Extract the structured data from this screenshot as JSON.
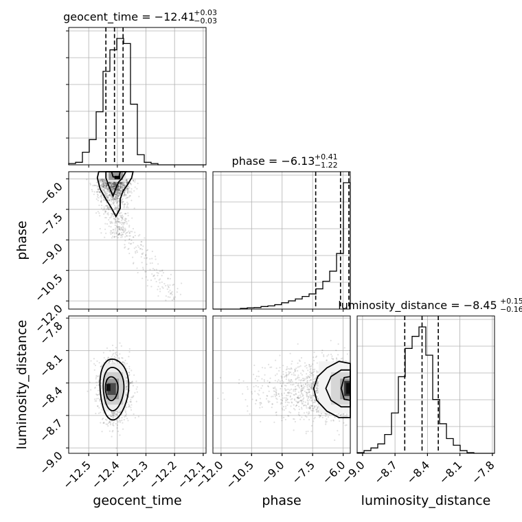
{
  "chart_data": {
    "type": "corner",
    "parameters": [
      {
        "name": "geocent_time",
        "label": "geocent_time",
        "median": -12.41,
        "plus": 0.03,
        "minus": 0.03,
        "title_main": "geocent_time = −12.41",
        "title_plus": "+0.03",
        "title_minus": "−0.03",
        "quantiles": [
          -12.44,
          -12.41,
          -12.38
        ],
        "range": [
          -12.57,
          -12.09
        ],
        "ticks": [
          -12.5,
          -12.4,
          -12.3,
          -12.2,
          -12.1
        ],
        "tick_labels": [
          "−12.5",
          "−12.4",
          "−12.3",
          "−12.2",
          "−12.1"
        ],
        "hist_bins": [
          -12.57,
          -12.546,
          -12.522,
          -12.498,
          -12.474,
          -12.45,
          -12.426,
          -12.402,
          -12.378,
          -12.354,
          -12.33,
          -12.306,
          -12.282,
          -12.258,
          -12.234,
          -12.21,
          -12.186,
          -12.162,
          -12.138,
          -12.114,
          -12.09
        ],
        "hist_counts": [
          0.01,
          0.02,
          0.1,
          0.2,
          0.42,
          0.74,
          0.91,
          1.0,
          0.96,
          0.48,
          0.08,
          0.02,
          0.01,
          0,
          0,
          0,
          0,
          0,
          0,
          0
        ]
      },
      {
        "name": "phase",
        "label": "phase",
        "median": -6.13,
        "plus": 0.41,
        "minus": 1.22,
        "title_main": "phase = −6.13",
        "title_plus": "+0.41",
        "title_minus": "−1.22",
        "quantiles": [
          -7.35,
          -6.13,
          -5.72
        ],
        "range": [
          -12.4,
          -5.65
        ],
        "ticks": [
          -12.0,
          -10.5,
          -9.0,
          -7.5,
          -6.0
        ],
        "tick_labels": [
          "−12.0",
          "−10.5",
          "−9.0",
          "−7.5",
          "−6.0"
        ],
        "hist_bins": [
          -12.4,
          -12.0625,
          -11.725,
          -11.3875,
          -11.05,
          -10.7125,
          -10.375,
          -10.0375,
          -9.7,
          -9.3625,
          -9.025,
          -8.6875,
          -8.35,
          -8.0125,
          -7.675,
          -7.3375,
          -7.0,
          -6.6625,
          -6.325,
          -5.9875,
          -5.65
        ],
        "hist_counts": [
          0,
          0,
          0,
          0,
          0.005,
          0.01,
          0.012,
          0.02,
          0.025,
          0.035,
          0.05,
          0.065,
          0.08,
          0.1,
          0.12,
          0.16,
          0.22,
          0.3,
          0.44,
          1.0
        ]
      },
      {
        "name": "luminosity_distance",
        "label": "luminosity_distance",
        "median": -8.45,
        "plus": 0.15,
        "minus": 0.16,
        "title_main": "luminosity_distance = −8.45",
        "title_plus": "+0.15",
        "title_minus": "−0.16",
        "quantiles": [
          -8.61,
          -8.45,
          -8.3
        ],
        "range": [
          -9.05,
          -7.78
        ],
        "ticks": [
          -9.0,
          -8.7,
          -8.4,
          -8.1,
          -7.8
        ],
        "tick_labels": [
          "−9.0",
          "−8.7",
          "−8.4",
          "−8.1",
          "−7.8"
        ],
        "hist_bins": [
          -9.05,
          -8.9865,
          -8.923,
          -8.8595,
          -8.796,
          -8.7325,
          -8.669,
          -8.6055,
          -8.542,
          -8.4785,
          -8.415,
          -8.3515,
          -8.288,
          -8.2245,
          -8.161,
          -8.0975,
          -8.034,
          -7.9705,
          -7.907,
          -7.8435,
          -7.78
        ],
        "hist_counts": [
          0.005,
          0.02,
          0.04,
          0.07,
          0.14,
          0.3,
          0.57,
          0.78,
          0.87,
          0.94,
          0.73,
          0.4,
          0.22,
          0.11,
          0.06,
          0.02,
          0.005,
          0,
          0,
          0
        ]
      }
    ],
    "pairs": [
      {
        "x": "geocent_time",
        "y": "phase",
        "scatter_center": [
          -12.41,
          -6.3
        ],
        "peak": [
          -12.4,
          -5.95
        ],
        "tail_toward": [
          -12.22,
          -11.6
        ]
      },
      {
        "x": "geocent_time",
        "y": "luminosity_distance",
        "scatter_center": [
          -12.41,
          -8.45
        ],
        "peak": [
          -12.43,
          -8.45
        ]
      },
      {
        "x": "phase",
        "y": "luminosity_distance",
        "scatter_center": [
          -6.3,
          -8.45
        ],
        "peak": [
          -5.8,
          -8.45
        ]
      }
    ],
    "grid": true,
    "xlabels": [
      "geocent_time",
      "phase",
      "luminosity_distance"
    ],
    "ylabels": [
      "phase",
      "luminosity_distance"
    ]
  }
}
